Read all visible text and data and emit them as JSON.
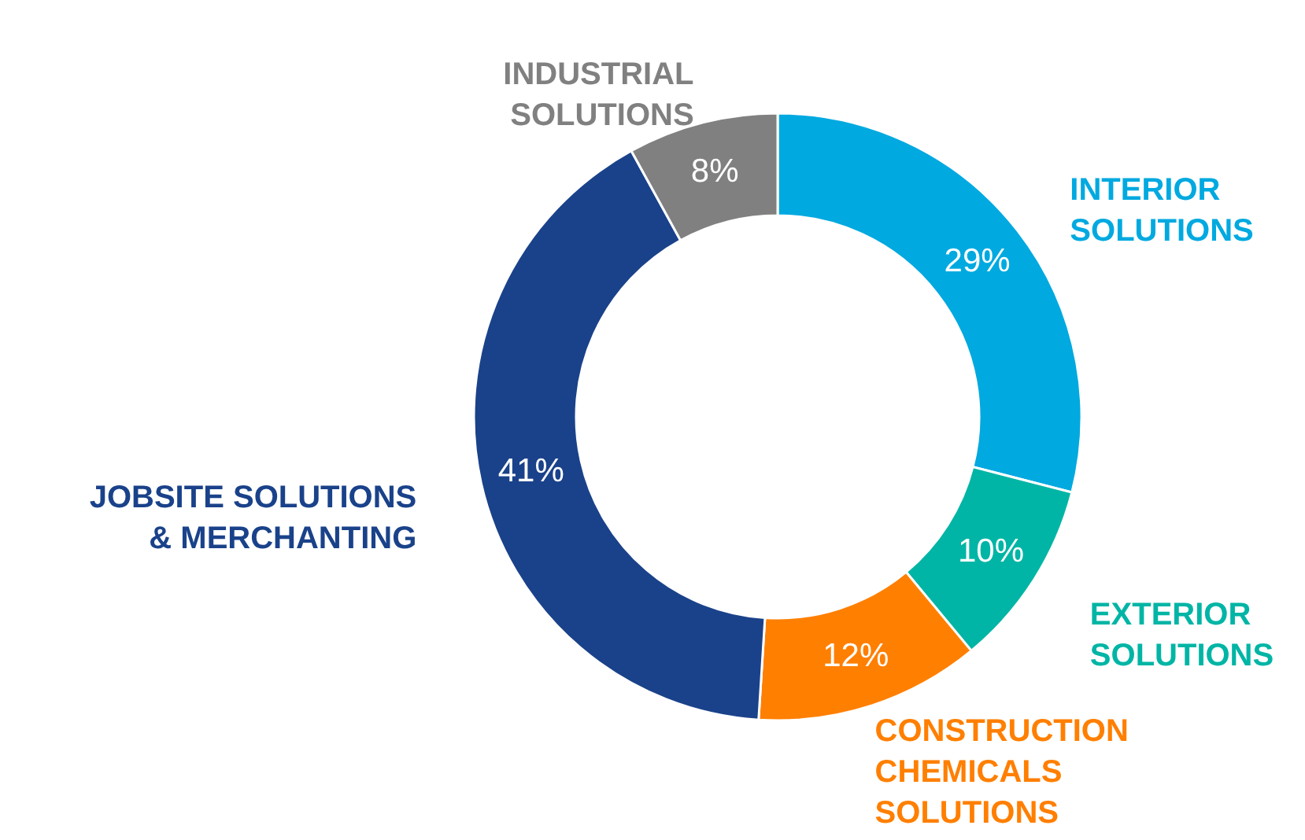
{
  "chart_data": {
    "type": "donut",
    "categories": [
      "INTERIOR SOLUTIONS",
      "EXTERIOR SOLUTIONS",
      "CONSTRUCTION CHEMICALS SOLUTIONS",
      "JOBSITE SOLUTIONS & MERCHANTING",
      "INDUSTRIAL SOLUTIONS"
    ],
    "values": [
      29,
      10,
      12,
      41,
      8
    ],
    "colors": [
      "#00a9e0",
      "#00b5a5",
      "#ff7f00",
      "#1a428a",
      "#808080"
    ],
    "value_labels": [
      "29%",
      "10%",
      "12%",
      "41%",
      "8%"
    ]
  }
}
